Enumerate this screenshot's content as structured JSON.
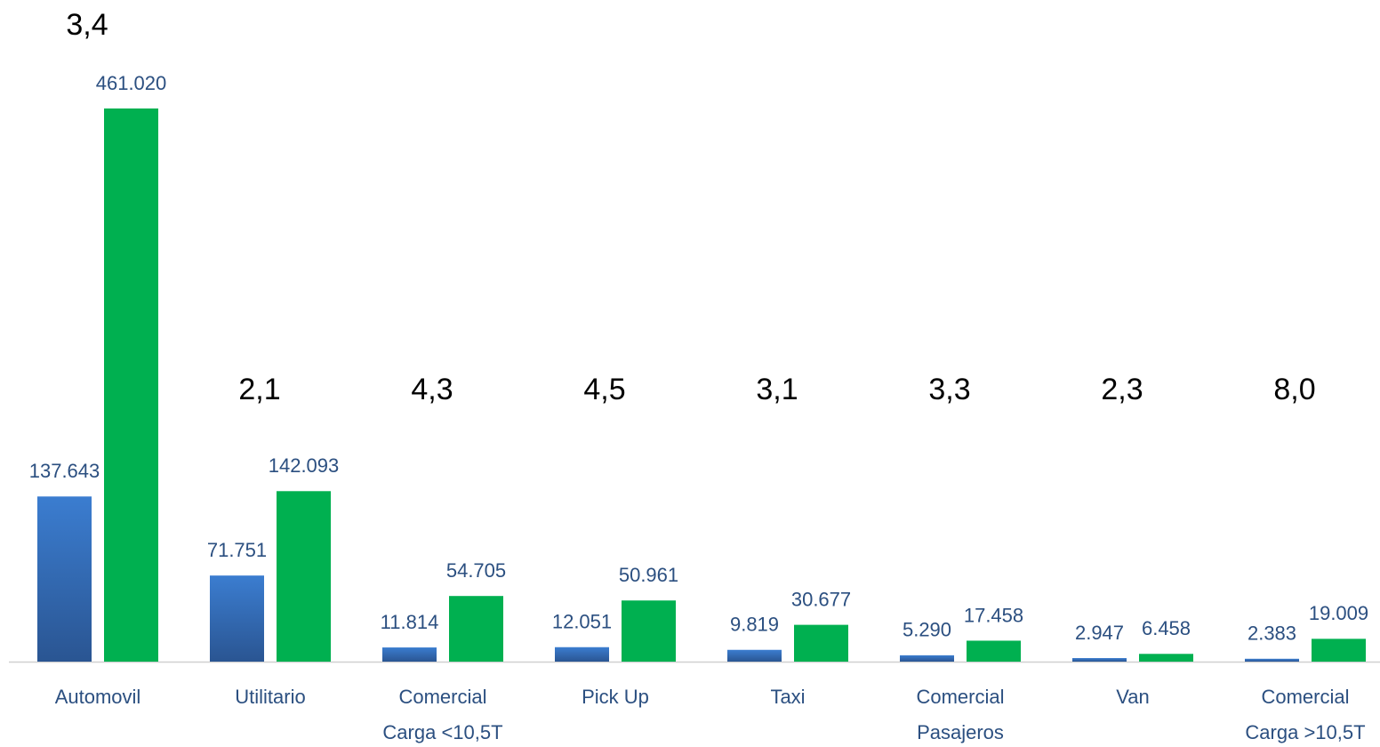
{
  "chart_data": {
    "type": "bar",
    "categories": [
      "Automovil",
      "Utilitario",
      "Comercial Carga <10,5T",
      "Pick Up",
      "Taxi",
      "Comercial Pasajeros",
      "Van",
      "Comercial Carga >10,5T"
    ],
    "series": [
      {
        "color": "#3b7dd0",
        "values": [
          137643,
          71751,
          11814,
          12051,
          9819,
          5290,
          2947,
          2383
        ],
        "value_labels": [
          "137.643",
          "71.751",
          "11.814",
          "12.051",
          "9.819",
          "5.290",
          "2.947",
          "2.383"
        ]
      },
      {
        "color": "#00b050",
        "values": [
          461020,
          142093,
          54705,
          50961,
          30677,
          17458,
          6458,
          19009
        ],
        "value_labels": [
          "461.020",
          "142.093",
          "54.705",
          "50.961",
          "30.677",
          "17.458",
          "6.458",
          "19.009"
        ]
      }
    ],
    "annotations": [
      "3,4",
      "2,1",
      "4,3",
      "4,5",
      "3,1",
      "3,3",
      "2,3",
      "8,0"
    ]
  }
}
